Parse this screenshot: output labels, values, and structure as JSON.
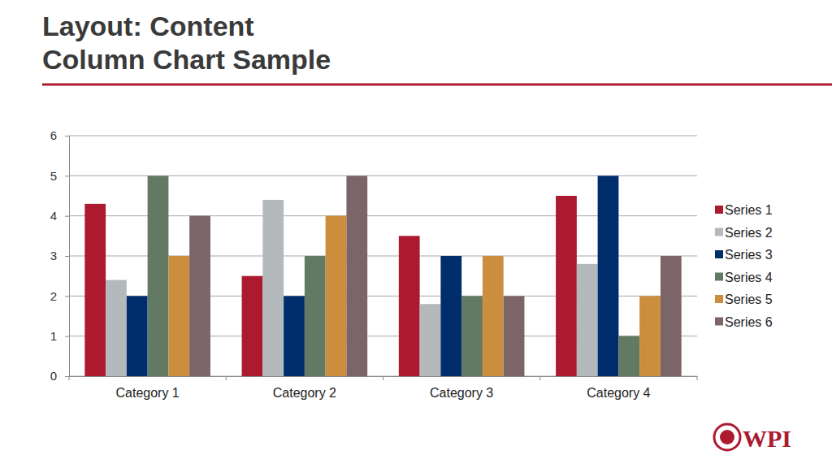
{
  "slide": {
    "title_lines": [
      "Layout: Content",
      "Column Chart Sample"
    ],
    "logo": "WPI"
  },
  "chart_data": {
    "type": "bar",
    "categories": [
      "Category 1",
      "Category 2",
      "Category 3",
      "Category 4"
    ],
    "series": [
      {
        "name": "Series 1",
        "color": "#ac1a2f",
        "values": [
          4.3,
          2.5,
          3.5,
          4.5
        ]
      },
      {
        "name": "Series 2",
        "color": "#b4babc",
        "values": [
          2.4,
          4.4,
          1.8,
          2.8
        ]
      },
      {
        "name": "Series 3",
        "color": "#002e6d",
        "values": [
          2,
          2,
          3,
          5
        ]
      },
      {
        "name": "Series 4",
        "color": "#627a63",
        "values": [
          5,
          3,
          2,
          1
        ]
      },
      {
        "name": "Series 5",
        "color": "#cb8e3e",
        "values": [
          3,
          4,
          3,
          2
        ]
      },
      {
        "name": "Series 6",
        "color": "#7c6569",
        "values": [
          4,
          5,
          2,
          3
        ]
      }
    ],
    "ylim": [
      0,
      6
    ],
    "yticks": [
      0,
      1,
      2,
      3,
      4,
      5,
      6
    ],
    "grid": true,
    "legend": "right"
  }
}
